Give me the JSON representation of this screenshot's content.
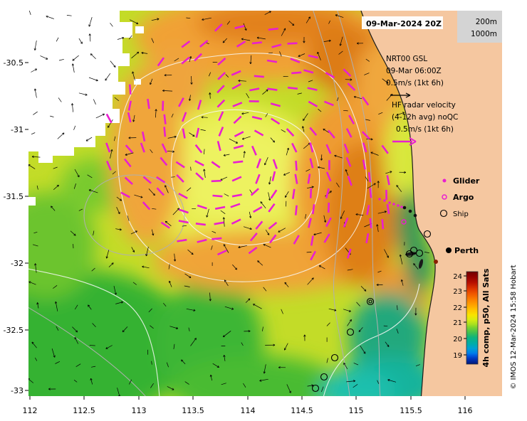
{
  "colors": {
    "land": "#f5c7a0",
    "vector_magenta": "#e81fd0",
    "vector_black": "#000000",
    "colorbar_label": "#8b0000",
    "depth_box_bg": "#d4d4d4"
  },
  "timestamp_annotation": "09-Mar-2024 20Z",
  "depth_labels": {
    "shallow": "200m",
    "deep": "1000m"
  },
  "gsl_annotation": {
    "line1": "NRT00 GSL",
    "line2": "09-Mar 06:00Z",
    "line3": "0.5m/s (1kt 6h)"
  },
  "hf_annotation": {
    "line1": "HF radar velocity",
    "line2": "(4-12h avg) noQC",
    "line3": "0.5m/s (1kt 6h)"
  },
  "legend": {
    "glider": "Glider",
    "argo": "Argo",
    "ship": "Ship"
  },
  "city_label": "Perth",
  "colorbar": {
    "label": "4h comp, p50, All Sats",
    "ticks": [
      "24",
      "23",
      "22",
      "21",
      "20",
      "19"
    ]
  },
  "credit": "© IMOS 12-Mar-2024 15:58 Hobart",
  "axes": {
    "x_ticks": [
      "112",
      "112.5",
      "113",
      "113.5",
      "114",
      "114.5",
      "115",
      "115.5",
      "116"
    ],
    "y_ticks": [
      "-30.5",
      "-31",
      "-31.5",
      "-32",
      "-32.5",
      "-33"
    ]
  },
  "chart_data": {
    "type": "heatmap",
    "title": "",
    "x_axis": {
      "ticks": [
        112,
        112.5,
        113,
        113.5,
        114,
        114.5,
        115,
        115.5,
        116
      ],
      "range": [
        111.99,
        116.34
      ]
    },
    "y_axis": {
      "ticks": [
        -30.5,
        -31,
        -31.5,
        -32,
        -32.5,
        -33
      ],
      "range": [
        -33.05,
        -30.11
      ]
    },
    "colorbar": {
      "label": "4h comp, p50, All Sats",
      "ticks": [
        24,
        23,
        22,
        21,
        20,
        19
      ],
      "range": [
        19,
        24
      ]
    },
    "annotations": [
      "09-Mar-2024 20Z",
      "NRT00 GSL 09-Mar 06:00Z 0.5m/s (1kt 6h)",
      "HF radar velocity (4-12h avg) noQC 0.5m/s (1kt 6h)",
      "200m",
      "1000m",
      "Perth"
    ],
    "legend_entries": [
      "Glider",
      "Argo",
      "Ship"
    ],
    "overlays": [
      "sea-surface-temperature color field (warm orange core ~23-24 offshore, yellow-green ~21-22, cool teal ~20 near coast south of Perth)",
      "magenta GSL velocity vectors over warm eddy region",
      "black HF radar velocity vectors across ocean",
      "gray bathymetry contours (200m, 1000m)",
      "white SST contours",
      "glider / argo / ship observation markers near Perth coast"
    ],
    "credit": "© IMOS 12-Mar-2024 15:58 Hobart"
  }
}
